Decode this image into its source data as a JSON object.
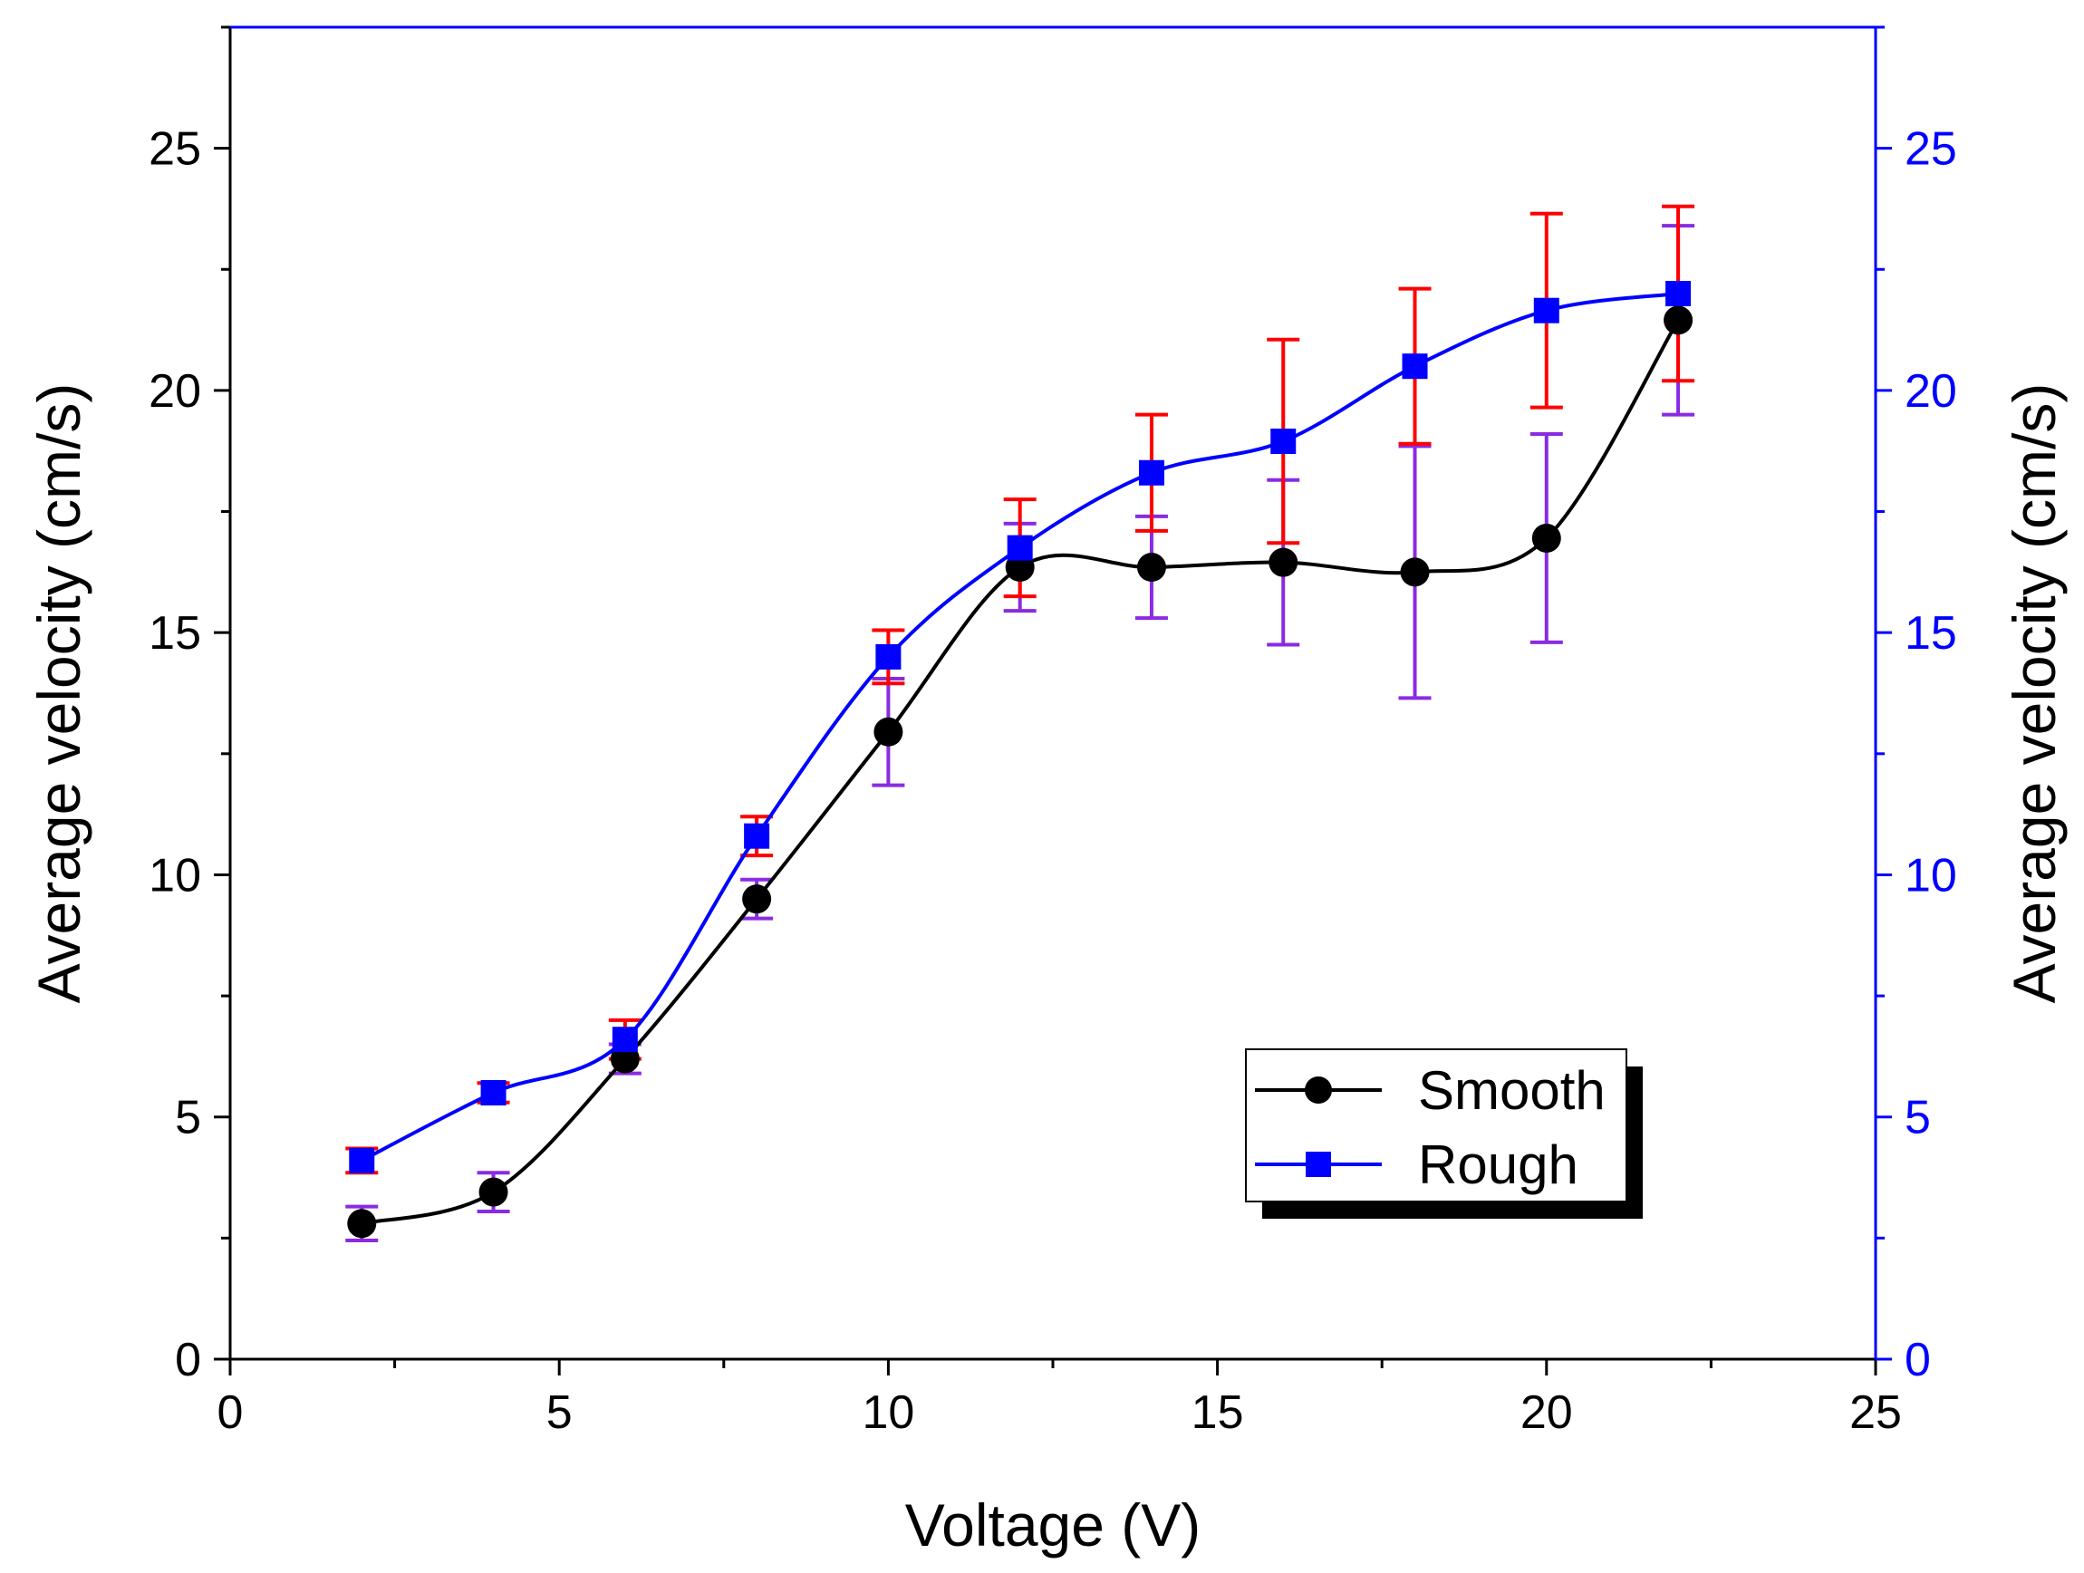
{
  "chart_data": {
    "type": "line",
    "xlabel": "Voltage (V)",
    "ylabel": "Average velocity (cm/s)",
    "ylabel_right": "Average velocity (cm/s)",
    "xlim": [
      0,
      25
    ],
    "ylim": [
      0,
      27.5
    ],
    "x_ticks": [
      0,
      5,
      10,
      15,
      20,
      25
    ],
    "y_ticks": [
      0,
      5,
      10,
      15,
      20,
      25
    ],
    "x_tick_labels": [
      "0",
      "5",
      "10",
      "15",
      "20",
      "25"
    ],
    "y_tick_labels": [
      "0",
      "5",
      "10",
      "15",
      "20",
      "25"
    ],
    "grid": false,
    "legend_position": "bottom-right",
    "colors": {
      "left_axis": "#000000",
      "right_axis": "#0000ff",
      "top_axis": "#0000ff",
      "legend_shadow": "#000000"
    },
    "series": [
      {
        "name": "Smooth",
        "marker": "circle",
        "line_color": "#000000",
        "marker_color": "#000000",
        "error_color": "#8a2be2",
        "x": [
          2,
          4,
          6,
          8,
          10,
          12,
          14,
          16,
          18,
          20,
          22
        ],
        "y": [
          2.8,
          3.45,
          6.2,
          9.5,
          12.95,
          16.35,
          16.35,
          16.45,
          16.25,
          16.95,
          21.45
        ],
        "err": [
          0.35,
          0.4,
          0.3,
          0.4,
          1.1,
          0.9,
          1.05,
          1.7,
          2.6,
          2.15,
          1.95
        ]
      },
      {
        "name": "Rough",
        "marker": "square",
        "line_color": "#0000ff",
        "marker_color": "#0000ff",
        "error_color": "#ff0000",
        "x": [
          2,
          4,
          6,
          8,
          10,
          12,
          14,
          16,
          18,
          20,
          22
        ],
        "y": [
          4.1,
          5.5,
          6.6,
          10.8,
          14.5,
          16.75,
          18.3,
          18.95,
          20.5,
          21.65,
          22.0
        ],
        "err": [
          0.25,
          0.2,
          0.4,
          0.4,
          0.55,
          1.0,
          1.2,
          2.1,
          1.6,
          2.0,
          1.8
        ]
      }
    ]
  }
}
